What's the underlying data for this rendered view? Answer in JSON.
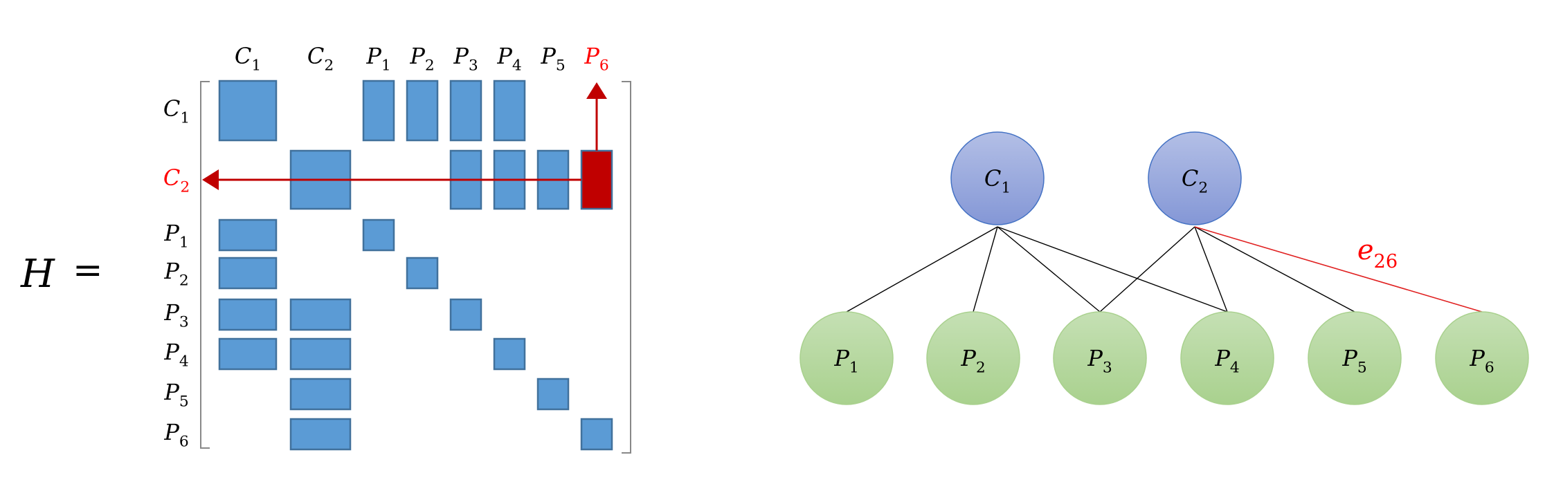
{
  "colors": {
    "block_fill": "#5B9BD5",
    "block_stroke": "#41719C",
    "highlight": "#C00000",
    "label": "#000000",
    "highlight_label": "#FF0000",
    "bracket": "#888888",
    "c_node_fill_top": "#B3BFE6",
    "c_node_fill_bottom": "#8497D6",
    "c_node_stroke": "#4472C4",
    "p_node_fill_top": "#C5E0B4",
    "p_node_fill_bottom": "#A9D18E",
    "p_node_stroke": "#A9D18E",
    "edge": "#000000",
    "highlight_edge": "#E02020"
  },
  "matrix": {
    "name": "H",
    "equals": "=",
    "columns": [
      {
        "id": "C1",
        "base": "C",
        "sub": "1"
      },
      {
        "id": "C2",
        "base": "C",
        "sub": "2"
      },
      {
        "id": "P1",
        "base": "P",
        "sub": "1"
      },
      {
        "id": "P2",
        "base": "P",
        "sub": "2"
      },
      {
        "id": "P3",
        "base": "P",
        "sub": "3"
      },
      {
        "id": "P4",
        "base": "P",
        "sub": "4"
      },
      {
        "id": "P5",
        "base": "P",
        "sub": "5"
      },
      {
        "id": "P6",
        "base": "P",
        "sub": "6",
        "highlighted": true
      }
    ],
    "rows": [
      {
        "id": "C1",
        "base": "C",
        "sub": "1"
      },
      {
        "id": "C2",
        "base": "C",
        "sub": "2",
        "highlighted": true
      },
      {
        "id": "P1",
        "base": "P",
        "sub": "1"
      },
      {
        "id": "P2",
        "base": "P",
        "sub": "2"
      },
      {
        "id": "P3",
        "base": "P",
        "sub": "3"
      },
      {
        "id": "P4",
        "base": "P",
        "sub": "4"
      },
      {
        "id": "P5",
        "base": "P",
        "sub": "5"
      },
      {
        "id": "P6",
        "base": "P",
        "sub": "6"
      }
    ],
    "nonzero_cells": [
      {
        "row": "C1",
        "col": "C1"
      },
      {
        "row": "C1",
        "col": "P1"
      },
      {
        "row": "C1",
        "col": "P2"
      },
      {
        "row": "C1",
        "col": "P3"
      },
      {
        "row": "C1",
        "col": "P4"
      },
      {
        "row": "C2",
        "col": "C2"
      },
      {
        "row": "C2",
        "col": "P3"
      },
      {
        "row": "C2",
        "col": "P4"
      },
      {
        "row": "C2",
        "col": "P5"
      },
      {
        "row": "C2",
        "col": "P6",
        "highlighted": true
      },
      {
        "row": "P1",
        "col": "C1"
      },
      {
        "row": "P1",
        "col": "P1"
      },
      {
        "row": "P2",
        "col": "C1"
      },
      {
        "row": "P2",
        "col": "P2"
      },
      {
        "row": "P3",
        "col": "C1"
      },
      {
        "row": "P3",
        "col": "C2"
      },
      {
        "row": "P3",
        "col": "P3"
      },
      {
        "row": "P4",
        "col": "C1"
      },
      {
        "row": "P4",
        "col": "C2"
      },
      {
        "row": "P4",
        "col": "P4"
      },
      {
        "row": "P5",
        "col": "C2"
      },
      {
        "row": "P5",
        "col": "P5"
      },
      {
        "row": "P6",
        "col": "C2"
      },
      {
        "row": "P6",
        "col": "P6"
      }
    ],
    "arrows": [
      {
        "from": "C2,P6",
        "to": "row-label",
        "label": "C2"
      },
      {
        "from": "C2,P6",
        "to": "col-label",
        "label": "P6"
      }
    ]
  },
  "graph": {
    "c_nodes": [
      {
        "id": "C1",
        "base": "C",
        "sub": "1"
      },
      {
        "id": "C2",
        "base": "C",
        "sub": "2"
      }
    ],
    "p_nodes": [
      {
        "id": "P1",
        "base": "P",
        "sub": "1"
      },
      {
        "id": "P2",
        "base": "P",
        "sub": "2"
      },
      {
        "id": "P3",
        "base": "P",
        "sub": "3"
      },
      {
        "id": "P4",
        "base": "P",
        "sub": "4"
      },
      {
        "id": "P5",
        "base": "P",
        "sub": "5"
      },
      {
        "id": "P6",
        "base": "P",
        "sub": "6"
      }
    ],
    "edges": [
      {
        "from": "C1",
        "to": "P1"
      },
      {
        "from": "C1",
        "to": "P2"
      },
      {
        "from": "C1",
        "to": "P3"
      },
      {
        "from": "C1",
        "to": "P4"
      },
      {
        "from": "C2",
        "to": "P3"
      },
      {
        "from": "C2",
        "to": "P4"
      },
      {
        "from": "C2",
        "to": "P5"
      },
      {
        "from": "C2",
        "to": "P6",
        "highlighted": true,
        "label": {
          "base": "e",
          "sub": "26"
        }
      }
    ]
  }
}
